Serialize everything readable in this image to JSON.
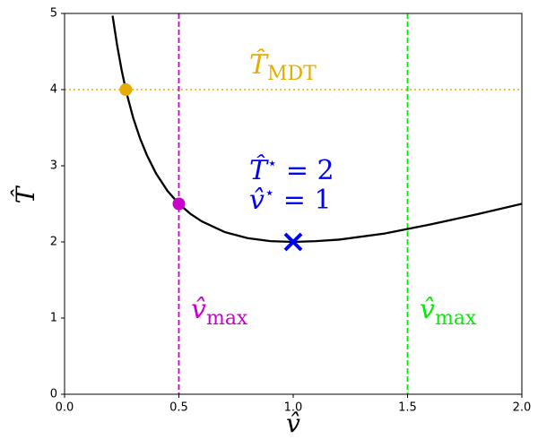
{
  "chart_data": {
    "type": "line",
    "x_label": "v̂",
    "y_label": "T̂",
    "x": [
      0.21,
      0.23,
      0.25,
      0.27,
      0.3,
      0.33,
      0.36,
      0.4,
      0.45,
      0.5,
      0.55,
      0.6,
      0.7,
      0.8,
      0.9,
      1.0,
      1.1,
      1.2,
      1.4,
      1.6,
      1.8,
      2.0
    ],
    "series": [
      {
        "color": "#000000",
        "values": [
          4.97,
          4.58,
          4.25,
          3.97,
          3.63,
          3.36,
          3.14,
          2.9,
          2.67,
          2.5,
          2.37,
          2.27,
          2.13,
          2.05,
          2.01,
          2.0,
          2.01,
          2.03,
          2.11,
          2.23,
          2.36,
          2.5
        ]
      }
    ],
    "hlines": [
      {
        "y": 4,
        "color": "#e6ac00"
      }
    ],
    "vlines": [
      {
        "x": 0.5,
        "color": "#cc00cc"
      },
      {
        "x": 1.5,
        "color": "#00ee00"
      }
    ],
    "markers": [
      {
        "x": 0.268,
        "y": 4,
        "color": "#e6ac00",
        "shape": "circle"
      },
      {
        "x": 0.5,
        "y": 2.5,
        "color": "#cc00cc",
        "shape": "circle"
      },
      {
        "x": 1.0,
        "y": 2.0,
        "color": "#0000ff",
        "shape": "x"
      }
    ],
    "annotations": [
      {
        "text": "T̂",
        "sub": "MDT",
        "color": "#e6ac00"
      },
      {
        "text": "T̂",
        "sup": "⋆",
        "tail": " = 2",
        "color": "#0000ff"
      },
      {
        "text": "v̂",
        "sup": "⋆",
        "tail": " = 1",
        "color": "#0000ff"
      },
      {
        "text": "v̂",
        "sub": "max",
        "color": "#cc00cc"
      },
      {
        "text": "v̂",
        "sub": "max",
        "color": "#00ee00"
      }
    ],
    "xlim": [
      0,
      2
    ],
    "ylim": [
      0,
      5
    ],
    "xticks": [
      {
        "value": 0,
        "label": "0.0"
      },
      {
        "value": 0.5,
        "label": "0.5"
      },
      {
        "value": 1,
        "label": "1.0"
      },
      {
        "value": 1.5,
        "label": "1.5"
      },
      {
        "value": 2,
        "label": "2.0"
      }
    ],
    "yticks": [
      0,
      1,
      2,
      3,
      4,
      5
    ]
  }
}
